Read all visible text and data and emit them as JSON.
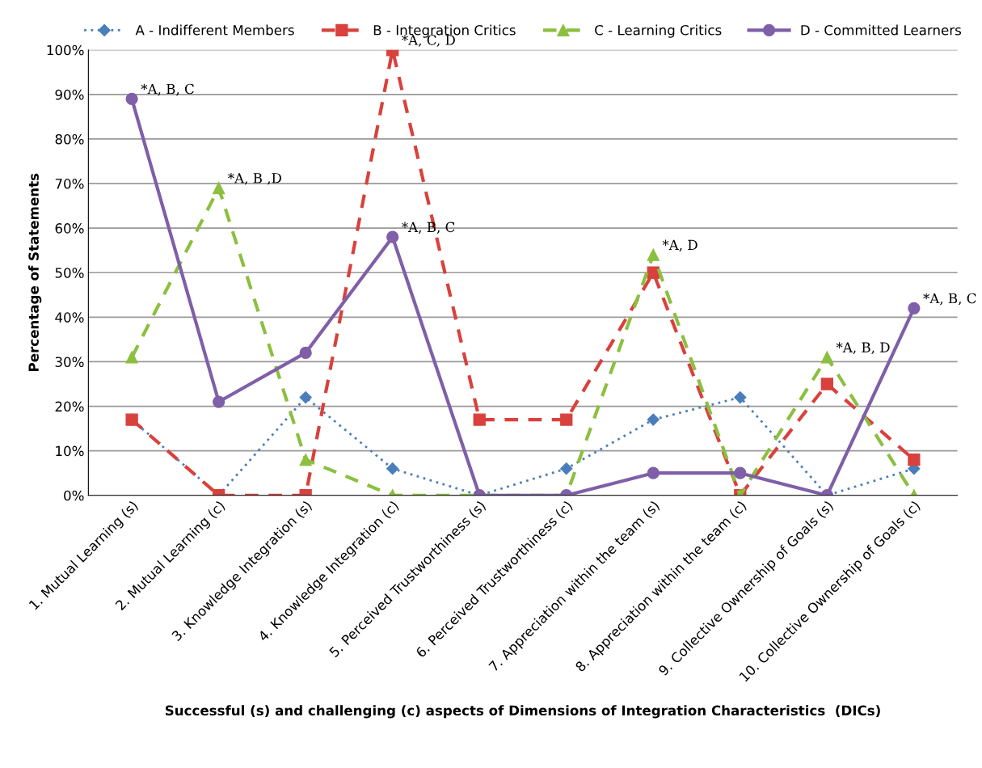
{
  "chart_data": {
    "type": "line",
    "xlabel": "Successful (s) and challenging (c) aspects of Dimensions of Integration Characteristics  (DICs)",
    "ylabel": "Percentage of Statements",
    "categories": [
      "1. Mutual Learning (s)",
      "2. Mutual Learning (c)",
      "3. Knowledge Integration (s)",
      "4. Knowledge Integration (c)",
      "5. Perceived Trustworthiness (s)",
      "6. Perceived Trustworthiness (c)",
      "7. Appreciation within the team (s)",
      "8. Appreciation within the team (c)",
      "9. Collective Ownership of Goals (s)",
      "10. Collective Ownership of Goals (c)"
    ],
    "series": [
      {
        "name": "A - Indifferent Members",
        "color": "#4a7ebb",
        "marker": "diamond",
        "line_style": "dotted",
        "values": [
          17,
          0,
          22,
          6,
          0,
          6,
          17,
          22,
          0,
          6
        ]
      },
      {
        "name": "B - Integration Critics",
        "color": "#d9413d",
        "marker": "square",
        "line_style": "dashed",
        "values": [
          17,
          0,
          0,
          100,
          17,
          17,
          50,
          0,
          25,
          8
        ]
      },
      {
        "name": "C - Learning Critics",
        "color": "#8cbf3f",
        "marker": "triangle",
        "line_style": "dashed",
        "values": [
          31,
          69,
          8,
          0,
          0,
          0,
          54,
          0,
          31,
          0
        ]
      },
      {
        "name": "D - Committed Learners",
        "color": "#7f5fa8",
        "marker": "circle",
        "line_style": "solid",
        "values": [
          89,
          21,
          32,
          58,
          0,
          0,
          5,
          5,
          0,
          42
        ]
      }
    ],
    "ylim": [
      0,
      100
    ],
    "yticks": [
      {
        "value": 0,
        "label": "0%"
      },
      {
        "value": 10,
        "label": "10%"
      },
      {
        "value": 20,
        "label": "20%"
      },
      {
        "value": 30,
        "label": "30%"
      },
      {
        "value": 40,
        "label": "40%"
      },
      {
        "value": 50,
        "label": "50%"
      },
      {
        "value": 60,
        "label": "60%"
      },
      {
        "value": 70,
        "label": "70%"
      },
      {
        "value": 80,
        "label": "80%"
      },
      {
        "value": 90,
        "label": "90%"
      },
      {
        "value": 100,
        "label": "100%"
      }
    ],
    "grid": "y",
    "legend": "top",
    "annotations": [
      {
        "text": "*A, B, C",
        "x": "1. Mutual Learning (s)",
        "y": 89
      },
      {
        "text": "*A, B ,D",
        "x": "2. Mutual Learning (c)",
        "y": 69
      },
      {
        "text": "*A, C, D",
        "x": "4. Knowledge Integration (c)",
        "y": 100
      },
      {
        "text": "*A, B, C",
        "x": "4. Knowledge Integration (c)",
        "y": 58
      },
      {
        "text": "*A, D",
        "x": "7. Appreciation within the team (s)",
        "y": 54
      },
      {
        "text": "*A, B, D",
        "x": "9. Collective Ownership of Goals (s)",
        "y": 31
      },
      {
        "text": "*A, B, C",
        "x": "10. Collective Ownership of Goals (c)",
        "y": 42
      }
    ]
  }
}
